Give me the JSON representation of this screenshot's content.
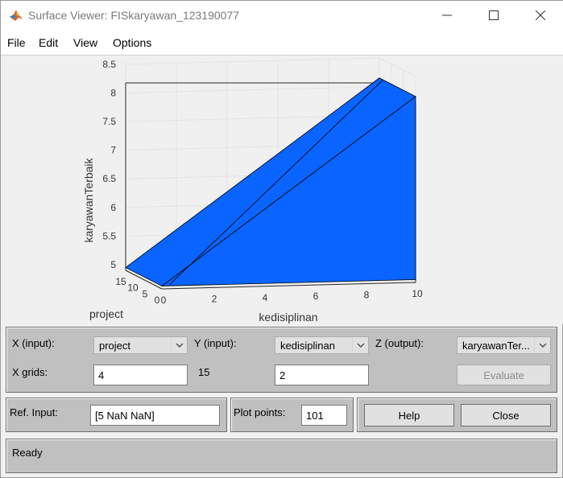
{
  "window": {
    "title": "Surface Viewer: FISkaryawan_123190077"
  },
  "menu": [
    "File",
    "Edit",
    "View",
    "Options"
  ],
  "chart_data": {
    "type": "surface",
    "xlabel": "kedisiplinan",
    "ylabel": "project",
    "zlabel": "karyawanTerbaik",
    "x_ticks": [
      "0",
      "2",
      "4",
      "6",
      "8",
      "10"
    ],
    "y_ticks": [
      "0",
      "5",
      "10",
      "15"
    ],
    "z_ticks": [
      "5",
      "5.5",
      "6",
      "6.5",
      "7",
      "7.5",
      "8",
      "8.5"
    ],
    "xlim": [
      0,
      10
    ],
    "ylim": [
      0,
      15
    ],
    "zlim": [
      4.9,
      8.5
    ],
    "grid": true,
    "surface_color": "#0a64ff"
  },
  "controls": {
    "x_input_label": "X (input):",
    "x_input_value": "project",
    "y_input_label": "Y (input):",
    "y_input_value": "kedisiplinan",
    "z_output_label": "Z (output):",
    "z_output_value": "karyawanTer...",
    "x_grids_label": "X grids:",
    "x_grids_value": "4",
    "y_grids_value_label": "15",
    "y_grids_value": "2",
    "evaluate_label": "Evaluate",
    "ref_input_label": "Ref. Input:",
    "ref_input_value": "[5 NaN NaN]",
    "plot_points_label": "Plot points:",
    "plot_points_value": "101",
    "help_label": "Help",
    "close_label": "Close"
  },
  "status": {
    "text": "Ready"
  }
}
